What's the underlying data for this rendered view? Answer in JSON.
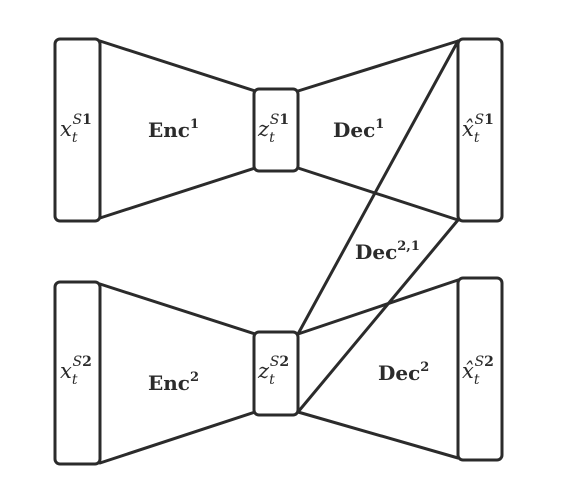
{
  "nodes": {
    "x1": {
      "base": "x",
      "sub": "t",
      "sup": "S",
      "sup_idx": "1"
    },
    "z1": {
      "base": "z",
      "sub": "t",
      "sup": "S",
      "sup_idx": "1"
    },
    "xhat1": {
      "base": "x̂",
      "sub": "t",
      "sup": "S",
      "sup_idx": "1"
    },
    "x2": {
      "base": "x",
      "sub": "t",
      "sup": "S",
      "sup_idx": "2"
    },
    "z2": {
      "base": "z",
      "sub": "t",
      "sup": "S",
      "sup_idx": "2"
    },
    "xhat2": {
      "base": "x̂",
      "sub": "t",
      "sup": "S",
      "sup_idx": "2"
    }
  },
  "modules": {
    "enc1": {
      "name": "Enc",
      "sup": "1"
    },
    "dec1": {
      "name": "Dec",
      "sup": "1"
    },
    "enc2": {
      "name": "Enc",
      "sup": "2"
    },
    "dec2": {
      "name": "Dec",
      "sup": "2"
    },
    "dec21": {
      "name": "Dec",
      "sup": "2,1"
    }
  },
  "colors": {
    "stroke": "#2b2b2b",
    "background": "#ffffff"
  }
}
